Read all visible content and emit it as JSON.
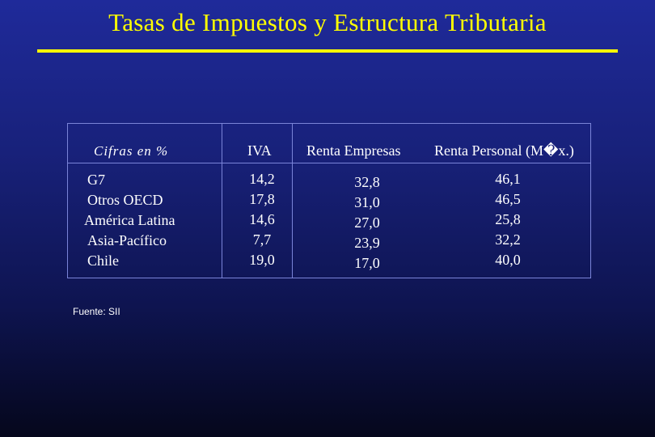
{
  "title": "Tasas de Impuestos y Estructura Tributaria",
  "table": {
    "headers": {
      "label": "Cifras en %",
      "iva": "IVA",
      "renta_empresas": "Renta Empresas",
      "renta_personal": "Renta Personal (M�x.)"
    },
    "regions": [
      "G7",
      "Otros OECD",
      "América Latina",
      "Asia-Pacífico",
      "Chile"
    ],
    "iva": [
      "14,2",
      "17,8",
      "14,6",
      "7,7",
      "19,0"
    ],
    "renta_empresas": [
      "32,8",
      "31,0",
      "27,0",
      "23,9",
      "17,0"
    ],
    "renta_personal": [
      "46,1",
      "46,5",
      "25,8",
      "32,2",
      "40,0"
    ]
  },
  "source": "Fuente: SII",
  "colors": {
    "title": "#ffff00",
    "background": "#1a237e",
    "text": "#ffffff",
    "grid": "#7a84d8"
  }
}
